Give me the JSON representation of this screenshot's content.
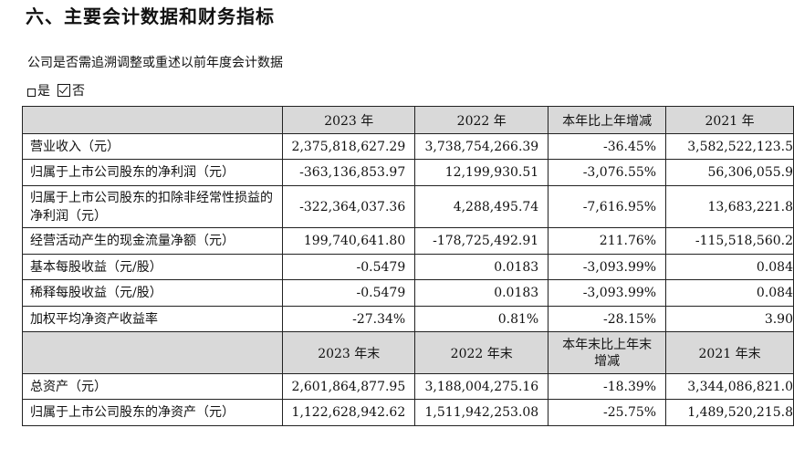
{
  "section_title": "六、主要会计数据和财务指标",
  "question": "公司是否需追溯调整或重述以前年度会计数据",
  "answer": {
    "yes_label": "是",
    "no_label": "否"
  },
  "header1": [
    "",
    "2023 年",
    "2022 年",
    "本年比上年增减",
    "2021 年"
  ],
  "rows1": [
    {
      "label": "营业收入（元）",
      "values": [
        "2,375,818,627.29",
        "3,738,754,266.39",
        "-36.45%",
        "3,582,522,123.5"
      ]
    },
    {
      "label": "归属于上市公司股东的净利润（元）",
      "values": [
        "-363,136,853.97",
        "12,199,930.51",
        "-3,076.55%",
        "56,306,055.9"
      ]
    },
    {
      "label": "归属于上市公司股东的扣除非经常性损益的净利润（元）",
      "values": [
        "-322,364,037.36",
        "4,288,495.74",
        "-7,616.95%",
        "13,683,221.8"
      ]
    },
    {
      "label": "经营活动产生的现金流量净额（元）",
      "values": [
        "199,740,641.80",
        "-178,725,492.91",
        "211.76%",
        "-115,518,560.2"
      ]
    },
    {
      "label": "基本每股收益（元/股）",
      "values": [
        "-0.5479",
        "0.0183",
        "-3,093.99%",
        "0.084"
      ]
    },
    {
      "label": "稀释每股收益（元/股）",
      "values": [
        "-0.5479",
        "0.0183",
        "-3,093.99%",
        "0.084"
      ]
    },
    {
      "label": "加权平均净资产收益率",
      "values": [
        "-27.34%",
        "0.81%",
        "-28.15%",
        "3.90"
      ]
    }
  ],
  "header2": [
    "",
    "2023 年末",
    "2022 年末",
    "本年末比上年末增减",
    "2021 年末"
  ],
  "rows2": [
    {
      "label": "总资产（元）",
      "values": [
        "2,601,864,877.95",
        "3,188,004,275.16",
        "-18.39%",
        "3,344,086,821.0"
      ]
    },
    {
      "label": "归属于上市公司股东的净资产（元）",
      "values": [
        "1,122,628,942.62",
        "1,511,942,253.08",
        "-25.75%",
        "1,489,520,215.8"
      ]
    }
  ]
}
